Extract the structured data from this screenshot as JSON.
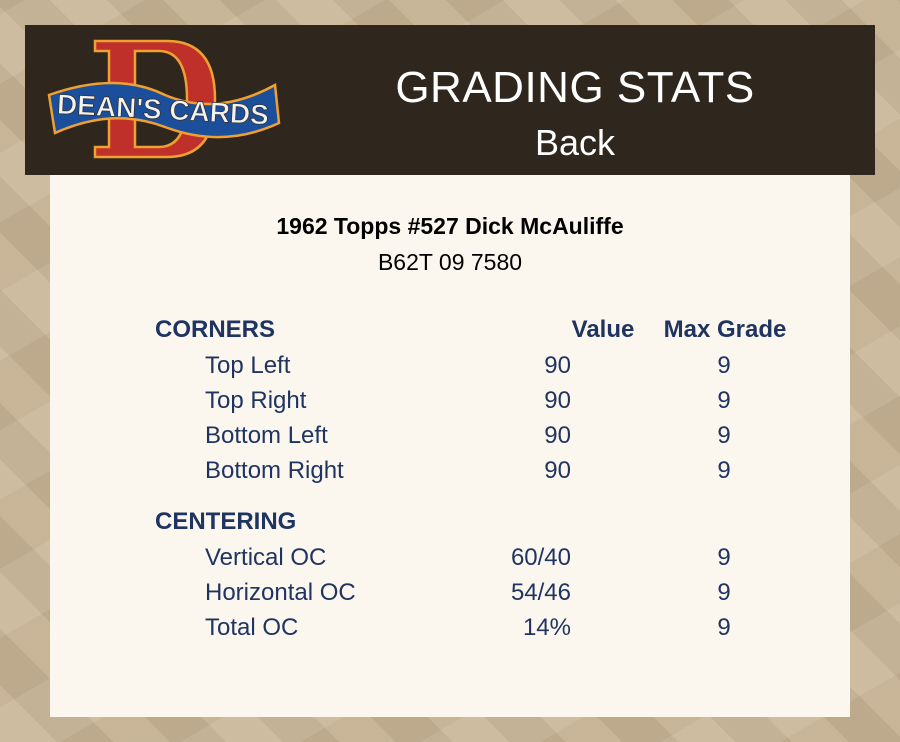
{
  "header": {
    "logo_text": "DEAN'S CARDS",
    "title": "GRADING STATS",
    "subtitle": "Back"
  },
  "card": {
    "name": "1962 Topps #527 Dick McAuliffe",
    "cert": "B62T 09 7580"
  },
  "columns": {
    "value": "Value",
    "max_grade": "Max Grade"
  },
  "sections": [
    {
      "title": "CORNERS",
      "rows": [
        {
          "label": "Top Left",
          "value": "90",
          "max": "9"
        },
        {
          "label": "Top Right",
          "value": "90",
          "max": "9"
        },
        {
          "label": "Bottom Left",
          "value": "90",
          "max": "9"
        },
        {
          "label": "Bottom Right",
          "value": "90",
          "max": "9"
        }
      ]
    },
    {
      "title": "CENTERING",
      "rows": [
        {
          "label": "Vertical OC",
          "value": "60/40",
          "max": "9"
        },
        {
          "label": "Horizontal OC",
          "value": "54/46",
          "max": "9"
        },
        {
          "label": "Total OC",
          "value": "14%",
          "max": "9"
        }
      ]
    }
  ],
  "colors": {
    "header_bg": "#2f271e",
    "panel_bg": "#fcf7ee",
    "text_blue": "#1f3461",
    "logo_red": "#c0302a",
    "logo_blue": "#1b4f9c",
    "logo_orange": "#f0a030"
  }
}
